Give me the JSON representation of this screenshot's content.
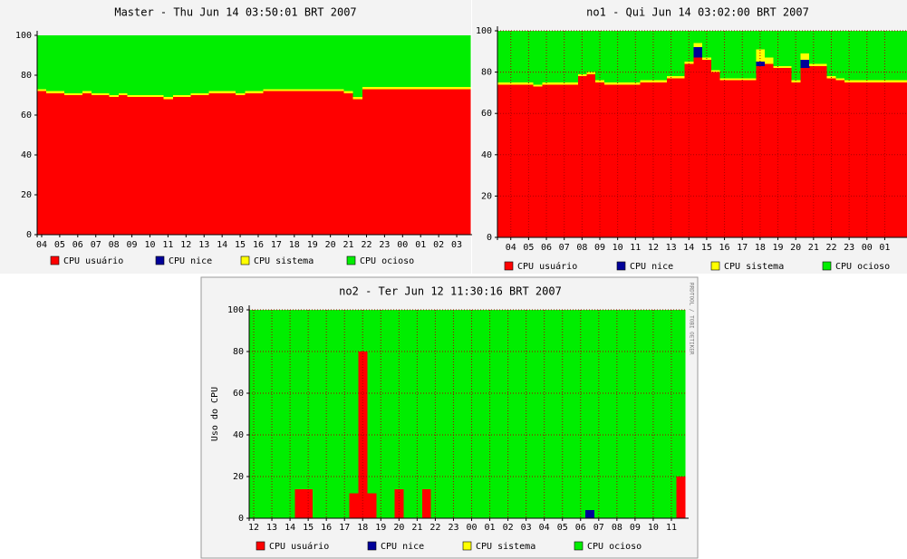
{
  "chart_data": [
    {
      "type": "area",
      "title": "Master - Thu Jun 14 03:50:01 BRT 2007",
      "categories": [
        "04",
        null,
        "05",
        null,
        "06",
        null,
        "07",
        null,
        "08",
        null,
        "09",
        null,
        "10",
        null,
        "11",
        null,
        "12",
        null,
        "13",
        null,
        "14",
        null,
        "15",
        null,
        "16",
        null,
        "17",
        null,
        "18",
        null,
        "19",
        null,
        "20",
        null,
        "21",
        null,
        "22",
        null,
        "23",
        null,
        "00",
        null,
        "01",
        null,
        "02",
        null,
        "03",
        null
      ],
      "series": [
        {
          "name": "CPU usuário",
          "color": "#ff0000",
          "values": [
            72,
            71,
            71,
            70,
            70,
            71,
            70,
            70,
            69,
            70,
            69,
            69,
            69,
            69,
            68,
            69,
            69,
            70,
            70,
            71,
            71,
            71,
            70,
            71,
            71,
            72,
            72,
            72,
            72,
            72,
            72,
            72,
            72,
            72,
            71,
            68,
            73,
            73,
            73,
            73,
            73,
            73,
            73,
            73,
            73,
            73,
            73,
            73
          ]
        },
        {
          "name": "CPU nice",
          "color": "#000099",
          "values": [
            0,
            0,
            0,
            0,
            0,
            0,
            0,
            0,
            0,
            0,
            0,
            0,
            0,
            0,
            0,
            0,
            0,
            0,
            0,
            0,
            0,
            0,
            0,
            0,
            0,
            0,
            0,
            0,
            0,
            0,
            0,
            0,
            0,
            0,
            0,
            0,
            0,
            0,
            0,
            0,
            0,
            0,
            0,
            0,
            0,
            0,
            0,
            0
          ]
        },
        {
          "name": "CPU sistema",
          "color": "#ffff00",
          "values": [
            1,
            1,
            1,
            1,
            1,
            1,
            1,
            1,
            1,
            1,
            1,
            1,
            1,
            1,
            1,
            1,
            1,
            1,
            1,
            1,
            1,
            1,
            1,
            1,
            1,
            1,
            1,
            1,
            1,
            1,
            1,
            1,
            1,
            1,
            1,
            1,
            1,
            1,
            1,
            1,
            1,
            1,
            1,
            1,
            1,
            1,
            1,
            1
          ]
        },
        {
          "name": "CPU ocioso",
          "color": "#00ee00",
          "values": [
            27,
            28,
            28,
            29,
            29,
            28,
            29,
            29,
            30,
            29,
            30,
            30,
            30,
            30,
            31,
            30,
            30,
            29,
            29,
            28,
            28,
            28,
            29,
            28,
            28,
            27,
            27,
            27,
            27,
            27,
            27,
            27,
            27,
            27,
            28,
            31,
            26,
            26,
            26,
            26,
            26,
            26,
            26,
            26,
            26,
            26,
            26,
            26
          ]
        }
      ],
      "ylim": [
        0,
        100
      ],
      "yticks": [
        0,
        20,
        40,
        60,
        80,
        100
      ],
      "grid": false
    },
    {
      "type": "area",
      "title": "no1 - Qui Jun 14 03:02:00 BRT 2007",
      "categories": [
        null,
        "04",
        null,
        "05",
        null,
        "06",
        null,
        "07",
        null,
        "08",
        null,
        "09",
        null,
        "10",
        null,
        "11",
        null,
        "12",
        null,
        "13",
        null,
        "14",
        null,
        "15",
        null,
        "16",
        null,
        "17",
        null,
        "18",
        null,
        "19",
        null,
        "20",
        null,
        "21",
        null,
        "22",
        null,
        "23",
        null,
        "00",
        null,
        "01",
        null,
        null
      ],
      "series": [
        {
          "name": "CPU usuário",
          "color": "#ff0000",
          "values": [
            74,
            74,
            74,
            74,
            73,
            74,
            74,
            74,
            74,
            78,
            79,
            75,
            74,
            74,
            74,
            74,
            75,
            75,
            75,
            77,
            77,
            84,
            87,
            86,
            80,
            76,
            76,
            76,
            76,
            83,
            84,
            82,
            82,
            75,
            82,
            83,
            83,
            77,
            76,
            75,
            75,
            75,
            75,
            75,
            75,
            75
          ]
        },
        {
          "name": "CPU nice",
          "color": "#000099",
          "values": [
            0,
            0,
            0,
            0,
            0,
            0,
            0,
            0,
            0,
            0,
            0,
            0,
            0,
            0,
            0,
            0,
            0,
            0,
            0,
            0,
            0,
            0,
            5,
            0,
            0,
            0,
            0,
            0,
            0,
            2,
            0,
            0,
            0,
            0,
            4,
            0,
            0,
            0,
            0,
            0,
            0,
            0,
            0,
            0,
            0,
            0
          ]
        },
        {
          "name": "CPU sistema",
          "color": "#ffff00",
          "values": [
            1,
            1,
            1,
            1,
            1,
            1,
            1,
            1,
            1,
            1,
            1,
            1,
            1,
            1,
            1,
            1,
            1,
            1,
            1,
            1,
            1,
            1,
            2,
            1,
            1,
            1,
            1,
            1,
            1,
            6,
            3,
            1,
            1,
            1,
            3,
            1,
            1,
            1,
            1,
            1,
            1,
            1,
            1,
            1,
            1,
            1
          ]
        },
        {
          "name": "CPU ocioso",
          "color": "#00ee00",
          "values": [
            25,
            25,
            25,
            25,
            26,
            25,
            25,
            25,
            25,
            21,
            20,
            24,
            25,
            25,
            25,
            25,
            24,
            24,
            24,
            22,
            22,
            15,
            6,
            13,
            19,
            23,
            23,
            23,
            23,
            9,
            13,
            17,
            17,
            24,
            11,
            16,
            16,
            22,
            23,
            24,
            24,
            24,
            24,
            24,
            24,
            24
          ]
        }
      ],
      "ylim": [
        0,
        100
      ],
      "yticks": [
        0,
        20,
        40,
        60,
        80,
        100
      ],
      "grid": true
    },
    {
      "type": "area",
      "title": "no2 - Ter Jun 12 11:30:16 BRT 2007",
      "ylabel": "Uso do CPU",
      "annotation": "RRDTOOL / TOBI OETIKER",
      "categories": [
        "12",
        null,
        "13",
        null,
        "14",
        null,
        "15",
        null,
        "16",
        null,
        "17",
        null,
        "18",
        null,
        "19",
        null,
        "20",
        null,
        "21",
        null,
        "22",
        null,
        "23",
        null,
        "00",
        null,
        "01",
        null,
        "02",
        null,
        "03",
        null,
        "04",
        null,
        "05",
        null,
        "06",
        null,
        "07",
        null,
        "08",
        null,
        "09",
        null,
        "10",
        null,
        "11",
        null
      ],
      "series": [
        {
          "name": "CPU usuário",
          "color": "#ff0000",
          "values": [
            0,
            0,
            0,
            0,
            0,
            14,
            14,
            0,
            0,
            0,
            0,
            12,
            80,
            12,
            0,
            0,
            14,
            0,
            0,
            14,
            0,
            0,
            0,
            0,
            0,
            0,
            0,
            0,
            0,
            0,
            0,
            0,
            0,
            0,
            0,
            0,
            0,
            0,
            0,
            0,
            0,
            0,
            0,
            0,
            0,
            0,
            0,
            20
          ]
        },
        {
          "name": "CPU nice",
          "color": "#000099",
          "values": [
            0,
            0,
            0,
            0,
            0,
            0,
            0,
            0,
            0,
            0,
            0,
            0,
            0,
            0,
            0,
            0,
            0,
            0,
            0,
            0,
            0,
            0,
            0,
            0,
            0,
            0,
            0,
            0,
            0,
            0,
            0,
            0,
            0,
            0,
            0,
            0,
            0,
            4,
            0,
            0,
            0,
            0,
            0,
            0,
            0,
            0,
            0,
            0
          ]
        },
        {
          "name": "CPU sistema",
          "color": "#ffff00",
          "values": [
            0,
            0,
            0,
            0,
            0,
            0,
            0,
            0,
            0,
            0,
            0,
            0,
            0,
            0,
            0,
            0,
            0,
            0,
            0,
            0,
            0,
            0,
            0,
            0,
            0,
            0,
            0,
            0,
            0,
            0,
            0,
            0,
            0,
            0,
            0,
            0,
            0,
            0,
            0,
            0,
            0,
            0,
            0,
            0,
            0,
            0,
            0,
            0
          ]
        },
        {
          "name": "CPU ocioso",
          "color": "#00ee00",
          "values": [
            100,
            100,
            100,
            100,
            100,
            86,
            86,
            100,
            100,
            100,
            100,
            88,
            20,
            88,
            100,
            100,
            86,
            100,
            100,
            86,
            100,
            100,
            100,
            100,
            100,
            100,
            100,
            100,
            100,
            100,
            100,
            100,
            100,
            100,
            100,
            100,
            100,
            96,
            100,
            100,
            100,
            100,
            100,
            100,
            100,
            100,
            100,
            80
          ]
        }
      ],
      "ylim": [
        0,
        100
      ],
      "yticks": [
        0,
        20,
        40,
        60,
        80,
        100
      ],
      "grid": true
    }
  ]
}
